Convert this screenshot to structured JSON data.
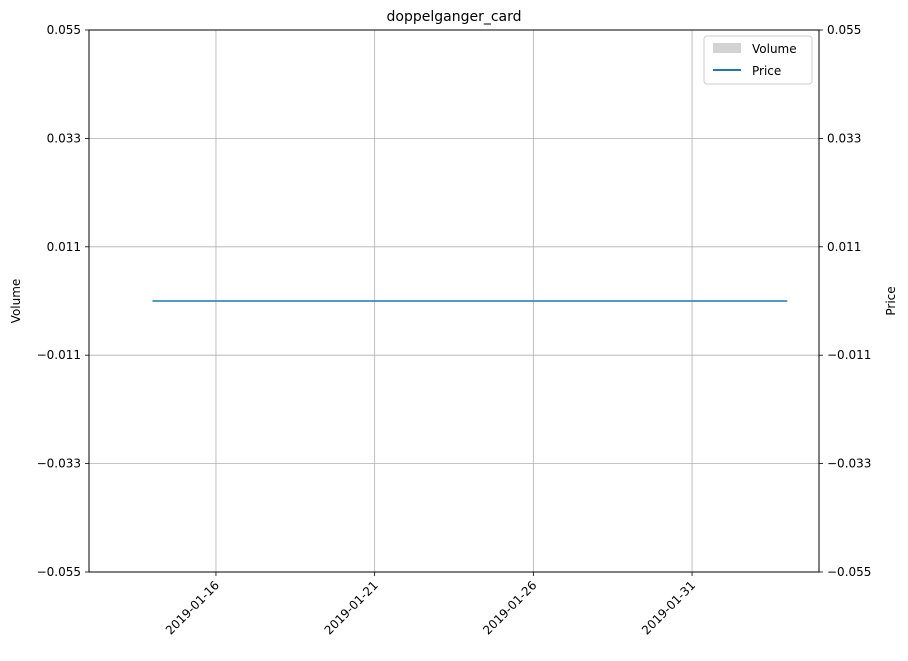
{
  "chart_data": {
    "type": "line",
    "title": "doppelganger_card",
    "xlabel": "",
    "ylabel_left": "Volume",
    "ylabel_right": "Price",
    "x_ticks": [
      "2019-01-16",
      "2019-01-21",
      "2019-01-26",
      "2019-01-31"
    ],
    "xlim": [
      "2019-01-12",
      "2019-02-04"
    ],
    "y_ticks_left": [
      "0.055",
      "0.033",
      "0.011",
      "−0.011",
      "−0.033",
      "−0.055"
    ],
    "y_ticks_right": [
      "0.055",
      "0.033",
      "0.011",
      "−0.011",
      "−0.033",
      "−0.055"
    ],
    "ylim_left": [
      -0.055,
      0.055
    ],
    "ylim_right": [
      -0.055,
      0.055
    ],
    "grid": true,
    "legend_position": "top-right",
    "series": [
      {
        "name": "Volume",
        "kind": "bar",
        "axis": "left",
        "color": "#d3d3d3",
        "x": [],
        "values": []
      },
      {
        "name": "Price",
        "kind": "line",
        "axis": "right",
        "color": "#1f77b4",
        "x": [
          "2019-01-14",
          "2019-02-03"
        ],
        "values": [
          0,
          0
        ]
      }
    ]
  }
}
